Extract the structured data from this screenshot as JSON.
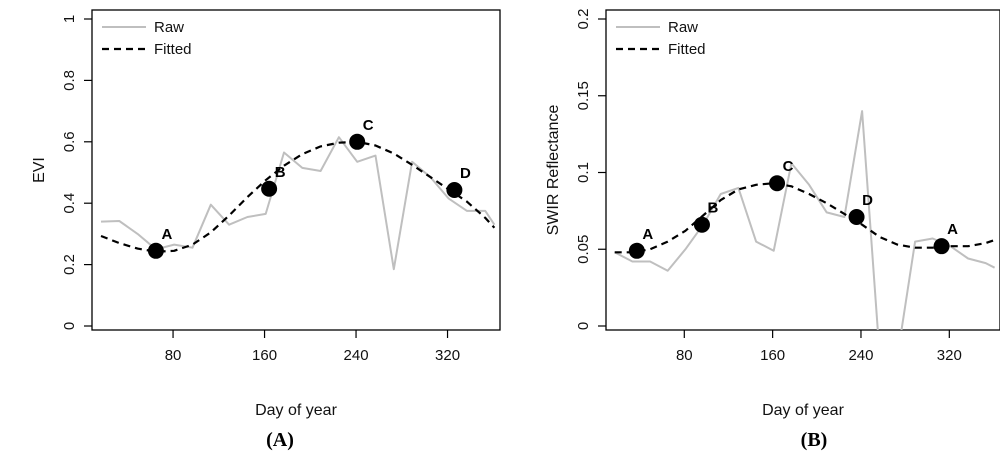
{
  "chart_data": [
    {
      "type": "line",
      "panel_label": "(A)",
      "xlabel": "Day of year",
      "ylabel": "EVI",
      "xlim": [
        10,
        365
      ],
      "ylim": [
        0,
        1
      ],
      "xticks": [
        80,
        160,
        240,
        320
      ],
      "yticks": [
        0,
        0.2,
        0.4,
        0.6,
        0.8,
        1
      ],
      "ytick_labels": [
        "0",
        "0.2",
        "0.4",
        "0.6",
        "0.8",
        "1"
      ],
      "legend": {
        "position": "top-left",
        "entries": [
          "Raw",
          "Fitted"
        ]
      },
      "series": [
        {
          "name": "Raw",
          "color": "#bfbfbf",
          "style": "solid",
          "x": [
            17,
            33,
            49,
            65,
            81,
            97,
            113,
            129,
            145,
            161,
            177,
            193,
            209,
            225,
            241,
            257,
            273,
            289,
            305,
            321,
            337,
            353,
            361
          ],
          "y": [
            0.34,
            0.342,
            0.3,
            0.25,
            0.265,
            0.255,
            0.395,
            0.33,
            0.355,
            0.365,
            0.565,
            0.515,
            0.505,
            0.615,
            0.535,
            0.555,
            0.185,
            0.535,
            0.485,
            0.415,
            0.375,
            0.375,
            0.33
          ]
        },
        {
          "name": "Fitted",
          "color": "#000000",
          "style": "dashed",
          "x": [
            17,
            33,
            49,
            65,
            81,
            97,
            113,
            129,
            145,
            161,
            177,
            193,
            209,
            225,
            241,
            257,
            273,
            289,
            305,
            321,
            337,
            353,
            361
          ],
          "y": [
            0.293,
            0.27,
            0.252,
            0.242,
            0.245,
            0.265,
            0.305,
            0.36,
            0.42,
            0.475,
            0.522,
            0.56,
            0.585,
            0.597,
            0.6,
            0.588,
            0.562,
            0.525,
            0.485,
            0.445,
            0.405,
            0.352,
            0.32
          ]
        }
      ],
      "points": [
        {
          "label": "A",
          "x": 65,
          "y": 0.245
        },
        {
          "label": "B",
          "x": 164,
          "y": 0.447
        },
        {
          "label": "C",
          "x": 241,
          "y": 0.6
        },
        {
          "label": "D",
          "x": 326,
          "y": 0.443
        }
      ]
    },
    {
      "type": "line",
      "panel_label": "(B)",
      "xlabel": "Day of year",
      "ylabel": "SWIR Reflectance",
      "xlim": [
        10,
        365
      ],
      "ylim": [
        0,
        0.2
      ],
      "xticks": [
        80,
        160,
        240,
        320
      ],
      "yticks": [
        0,
        0.05,
        0.1,
        0.15,
        0.2
      ],
      "ytick_labels": [
        "0",
        "0.05",
        "0.1",
        "0.15",
        "0.2"
      ],
      "legend": {
        "position": "top-left",
        "entries": [
          "Raw",
          "Fitted"
        ]
      },
      "series": [
        {
          "name": "Raw",
          "color": "#bfbfbf",
          "style": "solid",
          "x": [
            17,
            33,
            49,
            65,
            81,
            97,
            113,
            129,
            145,
            161,
            177,
            193,
            209,
            225,
            241,
            257,
            273,
            289,
            305,
            321,
            337,
            353,
            361
          ],
          "y": [
            0.048,
            0.042,
            0.042,
            0.036,
            0.05,
            0.066,
            0.086,
            0.09,
            0.055,
            0.049,
            0.106,
            0.092,
            0.074,
            0.071,
            0.14,
            -0.02,
            -0.02,
            0.055,
            0.057,
            0.052,
            0.044,
            0.041,
            0.038
          ]
        },
        {
          "name": "Fitted",
          "color": "#000000",
          "style": "dashed",
          "x": [
            17,
            33,
            49,
            65,
            81,
            97,
            113,
            129,
            145,
            161,
            177,
            193,
            209,
            225,
            241,
            257,
            273,
            289,
            305,
            321,
            337,
            353,
            361
          ],
          "y": [
            0.048,
            0.048,
            0.05,
            0.055,
            0.062,
            0.072,
            0.082,
            0.089,
            0.092,
            0.093,
            0.091,
            0.086,
            0.08,
            0.073,
            0.066,
            0.058,
            0.053,
            0.051,
            0.051,
            0.052,
            0.052,
            0.054,
            0.056
          ]
        }
      ],
      "points": [
        {
          "label": "A",
          "x": 37,
          "y": 0.049
        },
        {
          "label": "B",
          "x": 96,
          "y": 0.066
        },
        {
          "label": "C",
          "x": 164,
          "y": 0.093
        },
        {
          "label": "D",
          "x": 236,
          "y": 0.071
        },
        {
          "label": "A",
          "x": 313,
          "y": 0.052
        }
      ]
    }
  ]
}
